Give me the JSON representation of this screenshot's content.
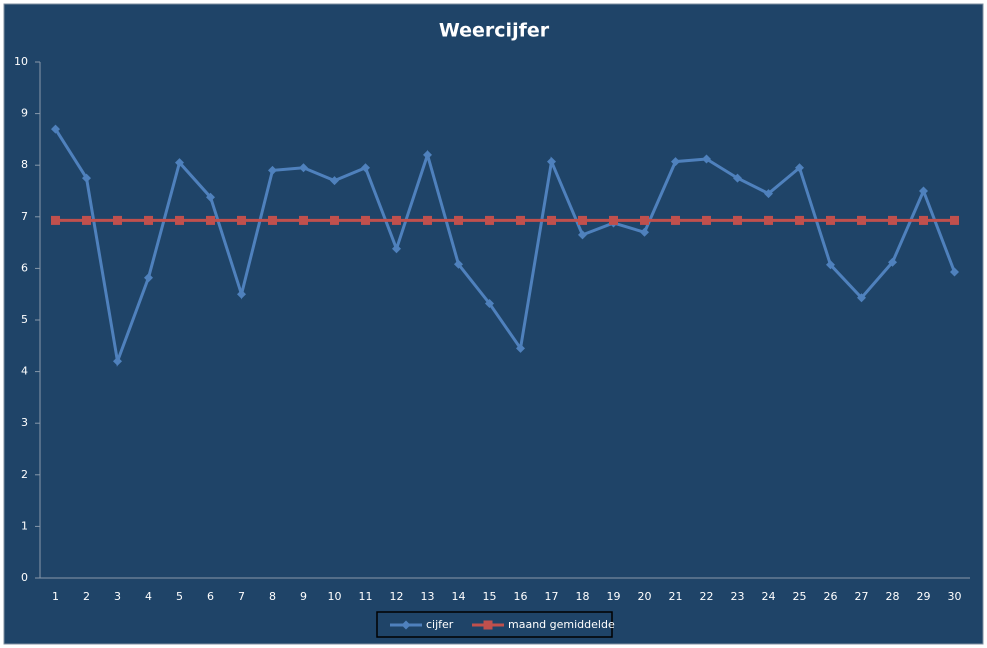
{
  "chart_data": {
    "type": "line",
    "title": "Weercijfer",
    "categories": [
      1,
      2,
      3,
      4,
      5,
      6,
      7,
      8,
      9,
      10,
      11,
      12,
      13,
      14,
      15,
      16,
      17,
      18,
      19,
      20,
      21,
      22,
      23,
      24,
      25,
      26,
      27,
      28,
      29,
      30
    ],
    "series": [
      {
        "name": "cijfer",
        "color": "#4f81bd",
        "marker": "diamond",
        "values": [
          8.7,
          7.75,
          4.2,
          5.82,
          8.05,
          7.38,
          5.5,
          7.9,
          7.95,
          7.7,
          7.95,
          6.38,
          8.2,
          6.08,
          5.32,
          4.45,
          8.07,
          6.65,
          6.88,
          6.7,
          8.07,
          8.12,
          7.75,
          7.45,
          7.95,
          6.07,
          5.43,
          6.12,
          7.5,
          5.93
        ]
      },
      {
        "name": "maand gemiddelde",
        "color": "#c0504d",
        "marker": "square",
        "values": [
          6.93,
          6.93,
          6.93,
          6.93,
          6.93,
          6.93,
          6.93,
          6.93,
          6.93,
          6.93,
          6.93,
          6.93,
          6.93,
          6.93,
          6.93,
          6.93,
          6.93,
          6.93,
          6.93,
          6.93,
          6.93,
          6.93,
          6.93,
          6.93,
          6.93,
          6.93,
          6.93,
          6.93,
          6.93,
          6.93
        ]
      }
    ],
    "ylim": [
      0,
      10
    ],
    "yticks": [
      0,
      1,
      2,
      3,
      4,
      5,
      6,
      7,
      8,
      9,
      10
    ],
    "grid": false,
    "legend": "bottom"
  }
}
